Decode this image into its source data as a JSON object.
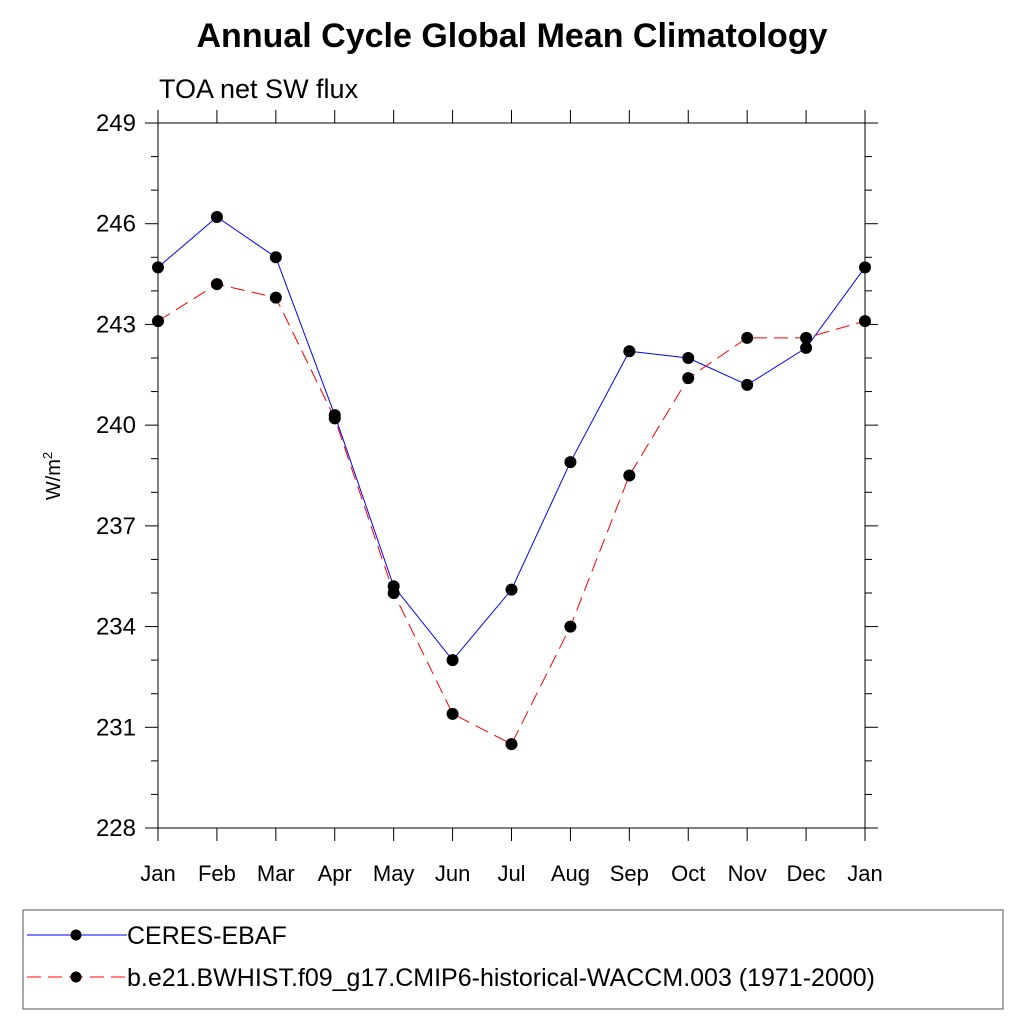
{
  "chart_data": {
    "type": "line",
    "title": "Annual Cycle Global Mean Climatology",
    "subtitle": "TOA net SW flux",
    "ylabel": "W/m",
    "ylabel_sup": "2",
    "xlabel": "",
    "categories": [
      "Jan",
      "Feb",
      "Mar",
      "Apr",
      "May",
      "Jun",
      "Jul",
      "Aug",
      "Sep",
      "Oct",
      "Nov",
      "Dec",
      "Jan"
    ],
    "ylim": [
      228,
      249
    ],
    "yticks": [
      "228",
      "231",
      "234",
      "237",
      "240",
      "243",
      "246",
      "249"
    ],
    "grid": false,
    "legend_position": "bottom",
    "series": [
      {
        "name": "CERES-EBAF",
        "color": "#0000ff",
        "dash": "solid",
        "marker": "filled-circle",
        "values": [
          244.7,
          246.2,
          245.0,
          240.3,
          235.2,
          233.0,
          235.1,
          238.9,
          242.2,
          242.0,
          241.2,
          242.3,
          244.7
        ]
      },
      {
        "name": "b.e21.BWHIST.f09_g17.CMIP6-historical-WACCM.003 (1971-2000)",
        "color": "#ff0000",
        "dash": "dashed",
        "marker": "filled-circle",
        "values": [
          243.1,
          244.2,
          243.8,
          240.2,
          235.0,
          231.4,
          230.5,
          234.0,
          238.5,
          241.4,
          242.6,
          242.6,
          243.1
        ]
      }
    ]
  }
}
